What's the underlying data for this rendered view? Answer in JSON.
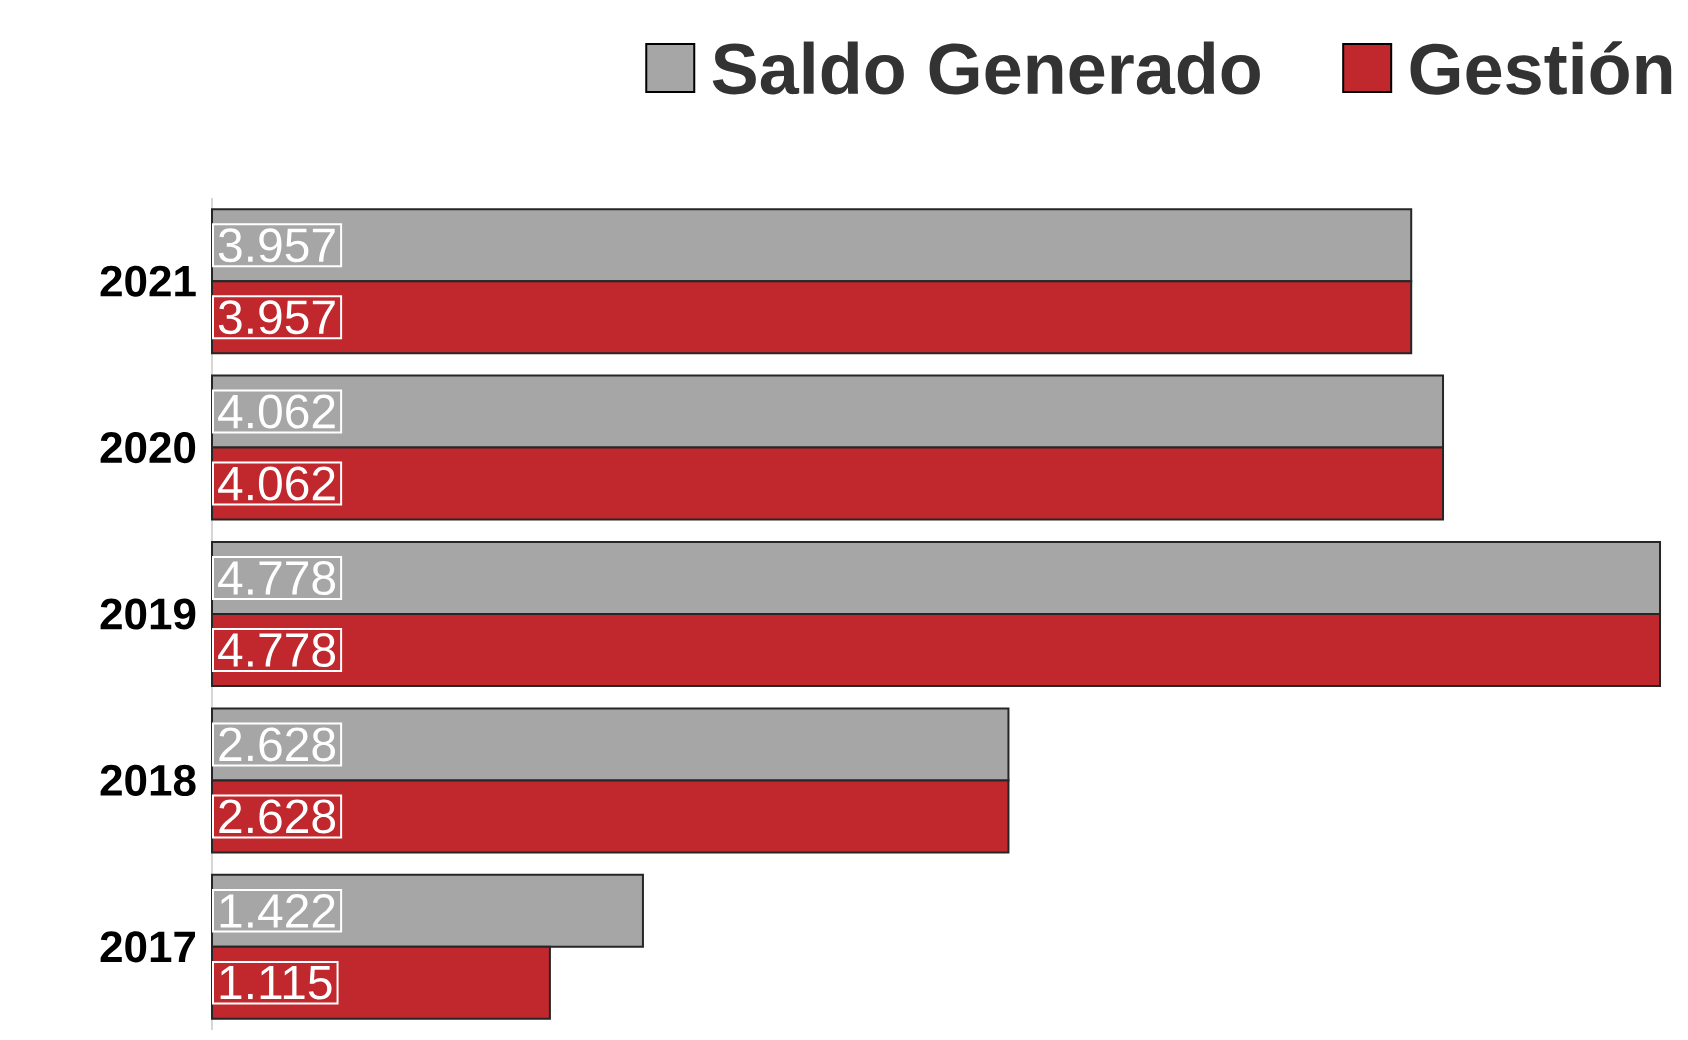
{
  "chart_data": {
    "type": "bar",
    "orientation": "horizontal",
    "categories": [
      "2021",
      "2020",
      "2019",
      "2018",
      "2017"
    ],
    "series": [
      {
        "name": "Saldo Generado",
        "color": "#a6a6a6",
        "values": [
          3.957,
          4.062,
          4.778,
          2.628,
          1.422
        ]
      },
      {
        "name": "Gestión",
        "color": "#c0282d",
        "values": [
          3.957,
          4.062,
          4.778,
          2.628,
          1.115
        ]
      }
    ],
    "data_labels": true,
    "legend": "top right"
  }
}
